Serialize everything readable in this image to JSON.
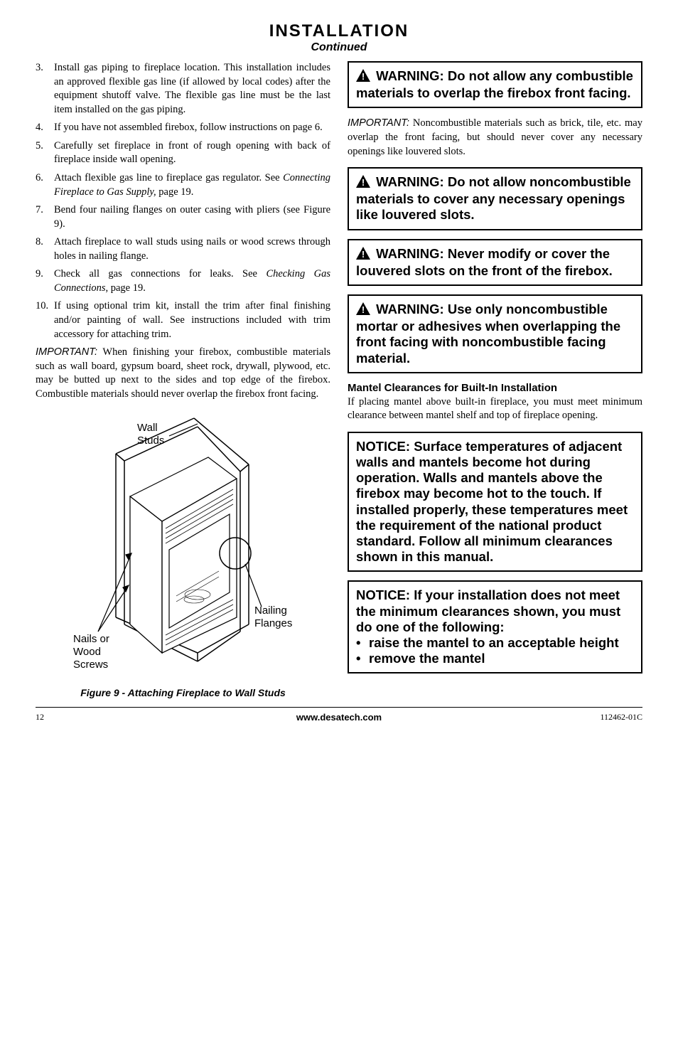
{
  "header": {
    "title": "INSTALLATION",
    "subtitle": "Continued"
  },
  "left": {
    "listStart": 3,
    "items": [
      {
        "num": "3.",
        "text": "Install gas piping to fireplace location. This installation includes an approved flexible gas line (if allowed by local codes) after the equipment shutoff valve. The flexible gas line must be the last item installed on the gas piping."
      },
      {
        "num": "4.",
        "text": "If you have not assembled firebox, follow instructions on page 6."
      },
      {
        "num": "5.",
        "text": "Carefully set fireplace in front of rough opening with back of fireplace inside wall opening."
      },
      {
        "num": "6.",
        "text_pre": "Attach flexible gas line to fireplace gas regulator. See ",
        "italic": "Connecting Fireplace to Gas Supply,",
        "text_post": " page 19."
      },
      {
        "num": "7.",
        "text": "Bend four nailing flanges on outer casing with pliers (see Figure 9)."
      },
      {
        "num": "8.",
        "text": "Attach fireplace to wall studs using nails or wood screws through holes in nailing flange."
      },
      {
        "num": "9.",
        "text_pre": "Check all gas connections for leaks. See ",
        "italic": "Checking Gas Connections",
        "text_post": ", page 19."
      },
      {
        "num": "10.",
        "text": "If using optional trim kit, install the trim after final finishing and/or painting of wall. See instructions included with trim accessory for attaching trim."
      }
    ],
    "importantLabel": "IMPORTANT:",
    "importantText": " When finishing your firebox, combustible materials such as wall board, gypsum board, sheet rock, drywall, plywood, etc. may be butted up next to the sides and top edge of the firebox. Combustible materials should never overlap the firebox front facing.",
    "figure": {
      "label_wallstuds": "Wall\nStuds",
      "label_nails": "Nails or\nWood\nScrews",
      "label_flanges": "Nailing\nFlanges",
      "caption": "Figure 9 - Attaching Fireplace to Wall Studs"
    }
  },
  "right": {
    "warn1": " WARNING: Do not allow any combustible materials to overlap the firebox front facing.",
    "importantLabel": "IMPORTANT:",
    "importantText": " Noncombustible materials such as brick, tile, etc. may overlap the front facing, but should never cover any necessary openings like louvered slots.",
    "warn2": " WARNING: Do not allow noncombustible materials to cover any necessary openings like louvered slots.",
    "warn3": " WARNING: Never modify or cover the louvered slots on the front of the firebox.",
    "warn4": " WARNING: Use only noncombustible mortar or adhesives when overlapping the front facing with noncombustible facing material.",
    "mantelHeader": "Mantel Clearances for Built-In Installation",
    "mantelText": "If placing mantel above built-in fireplace, you must meet minimum clearance between mantel shelf and top of fireplace opening.",
    "notice1": "NOTICE: Surface temperatures of adjacent walls and mantels become hot during operation. Walls and mantels above the firebox may become hot to the touch. If installed properly, these temperatures meet the requirement of the national product standard. Follow all minimum clearances shown in this manual.",
    "notice2_intro": "NOTICE: If your installation does not meet the minimum clearances shown, you must do one of the following:",
    "notice2_bullets": [
      "raise the mantel to an acceptable height",
      "remove the mantel"
    ]
  },
  "footer": {
    "pageNum": "12",
    "url": "www.desatech.com",
    "docId": "112462-01C"
  },
  "colors": {
    "text": "#000000",
    "bg": "#ffffff",
    "border": "#000000"
  }
}
